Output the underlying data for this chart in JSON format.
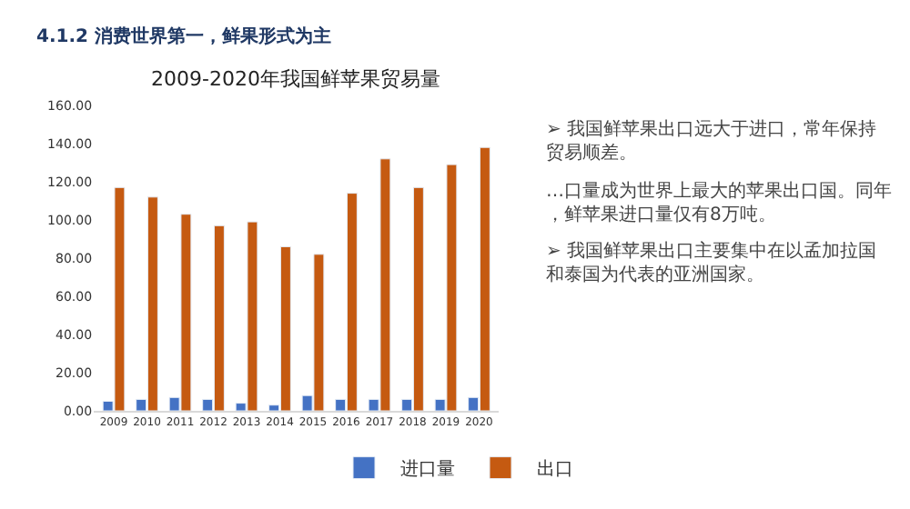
{
  "chart_data": {
    "type": "bar",
    "title": "2009-2020年我国鲜苹果贸易量",
    "subtitle": "4.1.2 消费世界第一，鲜果形式为主",
    "categories": [
      "2009",
      "2010",
      "2011",
      "2012",
      "2013",
      "2014",
      "2015",
      "2016",
      "2017",
      "2018",
      "2019",
      "2020"
    ],
    "series": [
      {
        "name": "进口量",
        "color": "#4472c4",
        "values": [
          5,
          6,
          7,
          6,
          4,
          3,
          8,
          6,
          6,
          6,
          6,
          7
        ]
      },
      {
        "name": "出口",
        "color": "#c55a11",
        "values": [
          117,
          112,
          103,
          97,
          99,
          86,
          82,
          114,
          132,
          117,
          129,
          138
        ]
      }
    ],
    "ylim": [
      0,
      160
    ],
    "yticks": [
      {
        "value": 0,
        "label": "0.00"
      },
      {
        "value": 20,
        "label": "20.00"
      },
      {
        "value": 40,
        "label": "40.00"
      },
      {
        "value": 60,
        "label": "60.00"
      },
      {
        "value": 80,
        "label": "80.00"
      },
      {
        "value": 100,
        "label": "100.00"
      },
      {
        "value": 120,
        "label": "120.00"
      },
      {
        "value": 140,
        "label": "140.00"
      },
      {
        "value": 160,
        "label": "160.00"
      }
    ],
    "legend": "bottom",
    "annotations": [
      "➢ 我国鲜苹果出口远大于进口，常年保持贸易顺差。",
      "…口量成为世界上最大的苹果出口国。同年，鲜苹果进口量仅有8万吨。",
      "➢ 我国鲜苹果出口主要集中在以孟加拉国和泰国为代表的亚洲国家。"
    ]
  }
}
